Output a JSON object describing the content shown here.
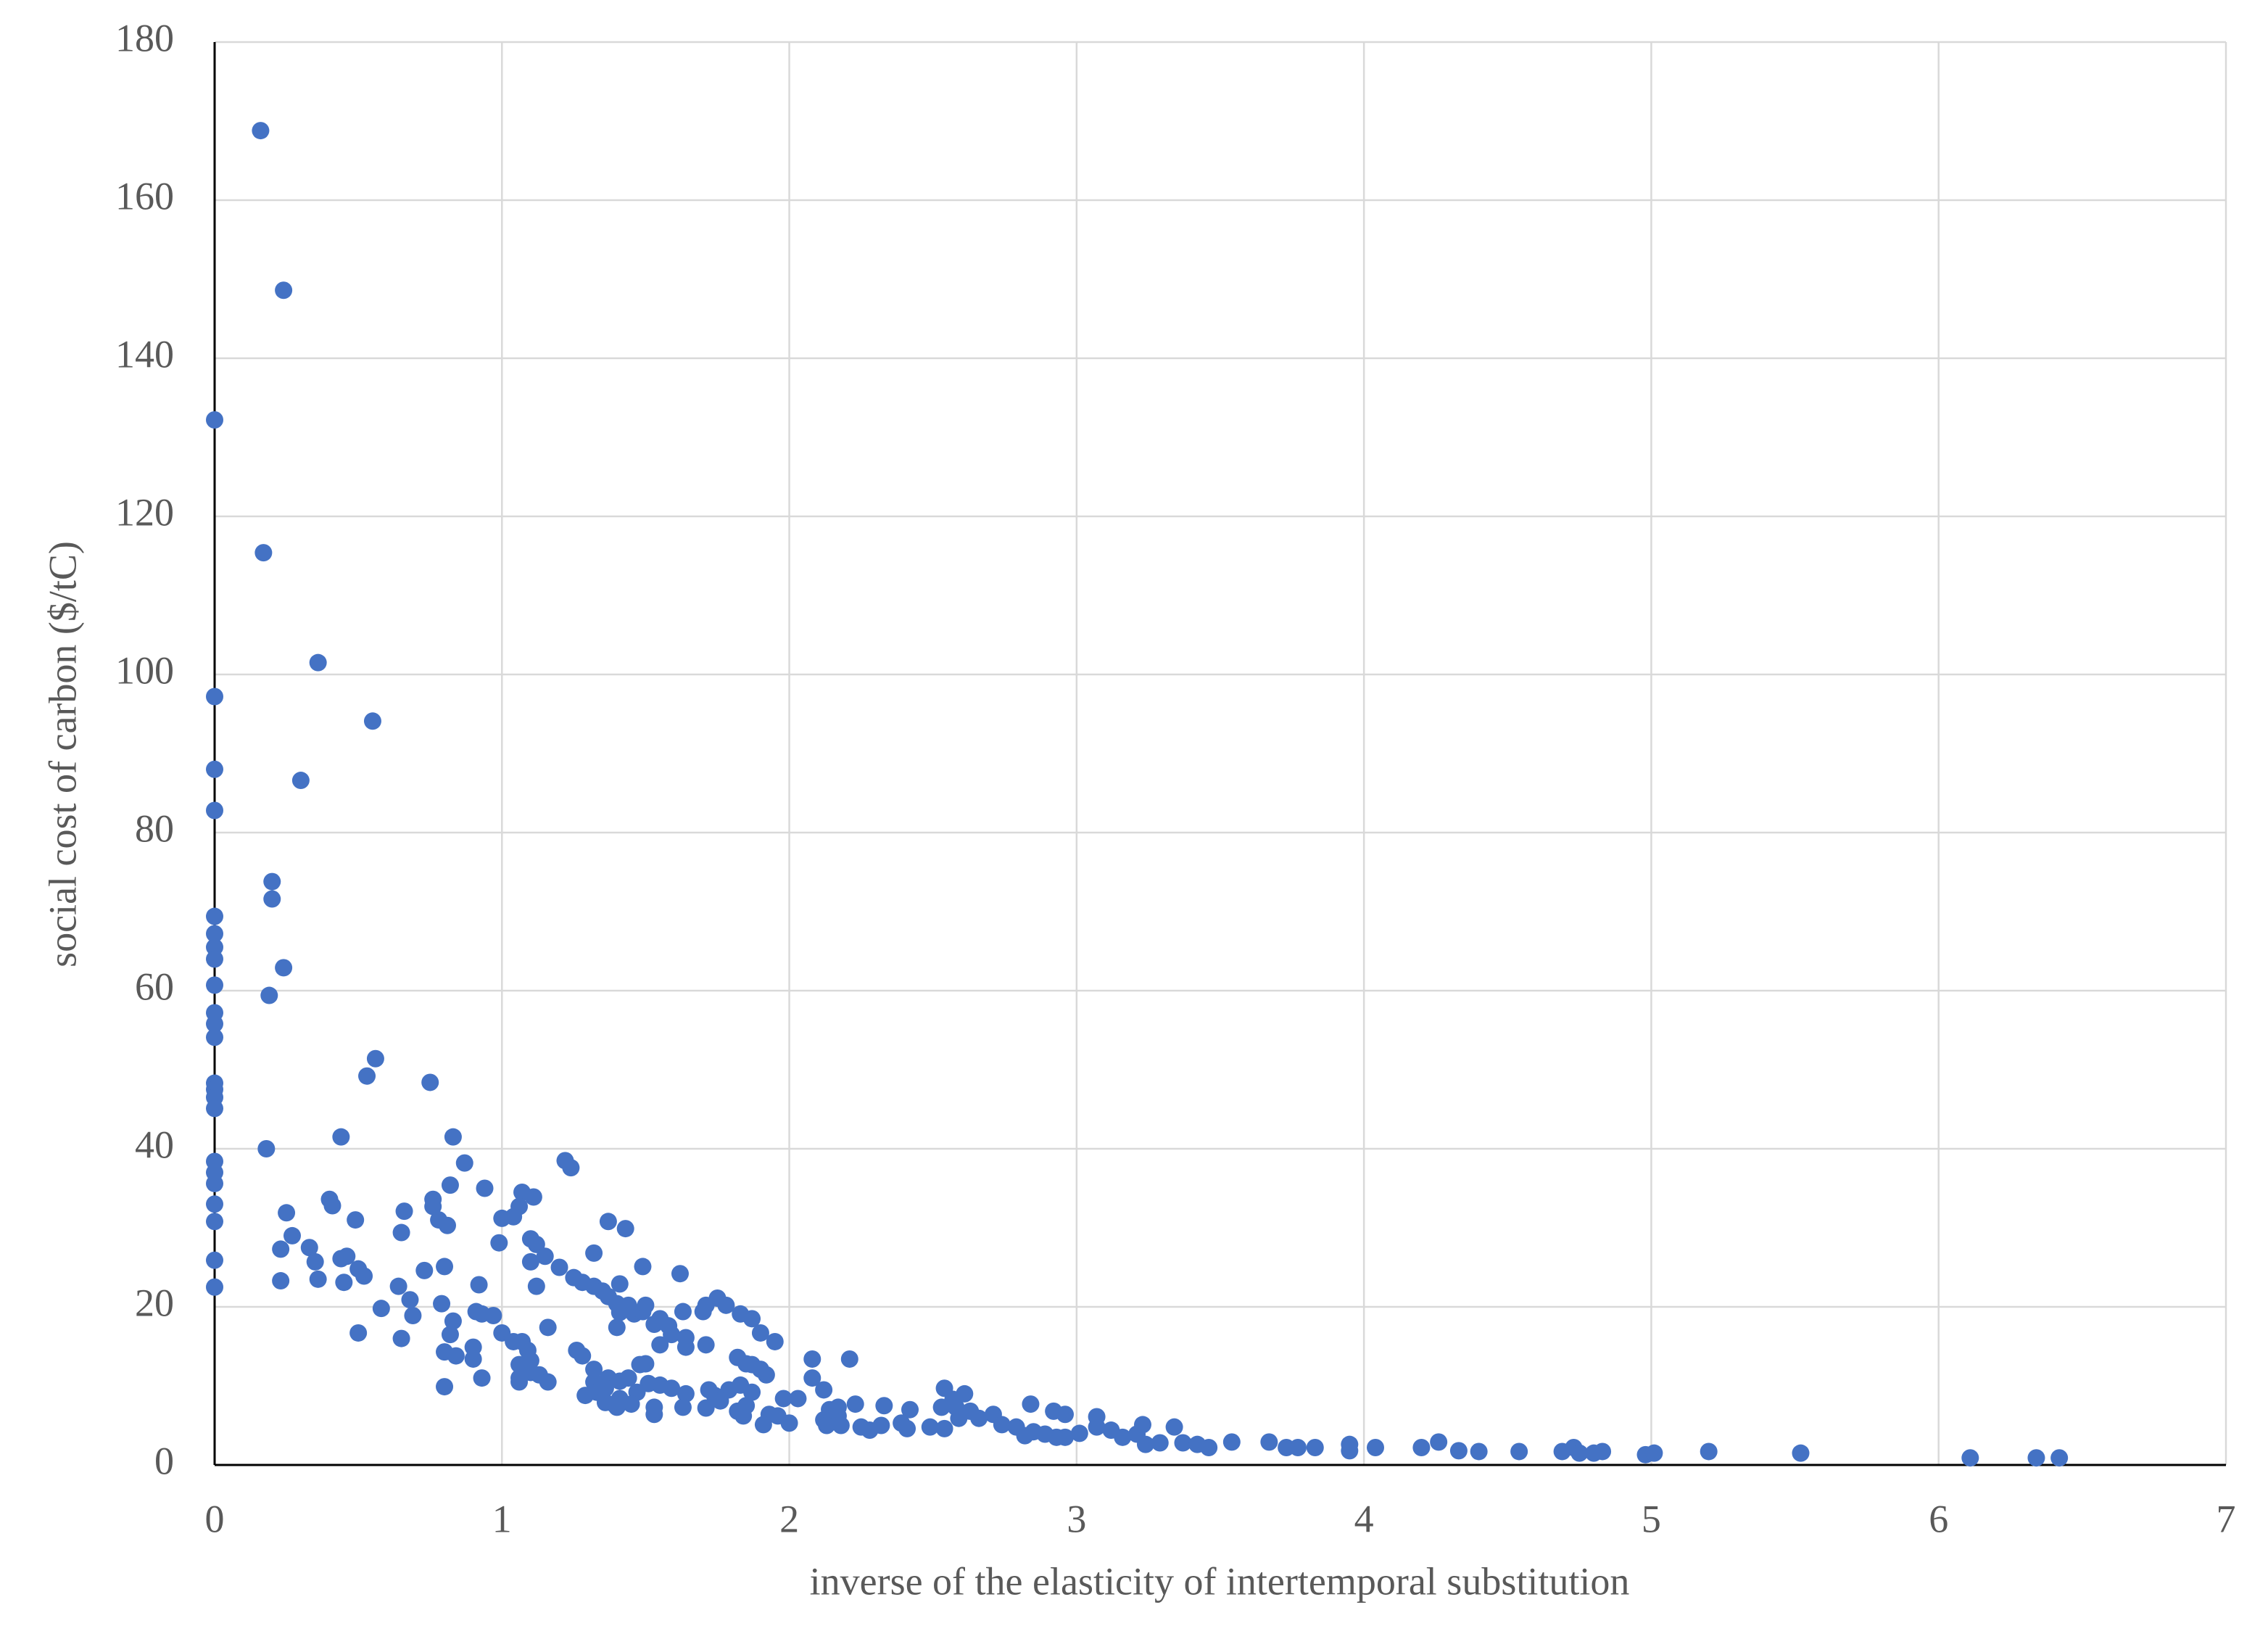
{
  "chart_data": {
    "type": "scatter",
    "xlabel": "inverse of the elasticity of intertemporal substitution",
    "ylabel": "social cost of carbon ($/tC)",
    "color": "#4472c4",
    "grid": true,
    "xlim": [
      0,
      7
    ],
    "xticks": [
      0,
      1,
      2,
      3,
      4,
      5,
      6,
      7
    ],
    "ylim": [
      0,
      180
    ],
    "yticks": [
      0,
      20,
      40,
      60,
      80,
      100,
      120,
      140,
      160,
      180
    ],
    "x": [
      0,
      0,
      0,
      0,
      0,
      0,
      0,
      0,
      0,
      0,
      0,
      0,
      0,
      0,
      0,
      0,
      0,
      0,
      0,
      0,
      0,
      0,
      0,
      0.16,
      0.24,
      0.17,
      0.36,
      0.55,
      0.3,
      0.2,
      0.2,
      0.24,
      0.19,
      0.18,
      0.56,
      0.53,
      0.75,
      0.44,
      0.83,
      0.87,
      1.22,
      1.24,
      0.82,
      0.94,
      0.4,
      0.41,
      0.25,
      0.66,
      0.76,
      0.76,
      0.49,
      0.78,
      0.81,
      1.37,
      1.43,
      1.07,
      1.11,
      1.06,
      1.04,
      1.0,
      0.99,
      1.1,
      1.12,
      1.15,
      1.1,
      1.2,
      0.65,
      0.27,
      0.33,
      0.23,
      0.46,
      0.44,
      0.35,
      0.73,
      0.8,
      0.5,
      0.52,
      0.23,
      0.36,
      0.45,
      1.32,
      1.49,
      1.62,
      1.25,
      1.28,
      1.32,
      1.35,
      1.41,
      0.92,
      1.12,
      0.64,
      0.68,
      1.37,
      1.4,
      1.41,
      1.44,
      1.46,
      1.49,
      1.5,
      1.75,
      1.71,
      1.78,
      1.7,
      1.83,
      1.87,
      1.63,
      1.55,
      1.58,
      1.53,
      1.4,
      1.9,
      1.95,
      1.59,
      1.64,
      1.64,
      1.71,
      1.55,
      0.58,
      0.79,
      0.69,
      0.83,
      0.91,
      0.97,
      0.93,
      0.82,
      1.0,
      0.5,
      0.65,
      1.16,
      1.04,
      1.07,
      0.9,
      0.8,
      0.84,
      1.09,
      1.1,
      0.9,
      1.06,
      1.26,
      1.28,
      1.06,
      1.1,
      1.13,
      0.93,
      1.06,
      1.16,
      0.8,
      1.32,
      1.48,
      1.5,
      1.82,
      1.85,
      1.87,
      1.9,
      1.92,
      2.08,
      2.21,
      2.08,
      2.12,
      1.37,
      1.41,
      1.44,
      1.32,
      1.36,
      1.51,
      1.55,
      1.59,
      1.64,
      1.72,
      1.74,
      1.79,
      1.83,
      1.87,
      1.98,
      2.03,
      1.29,
      1.33,
      1.41,
      1.47,
      1.39,
      1.45,
      1.36,
      1.4,
      1.53,
      1.63,
      1.71,
      1.76,
      1.82,
      1.85,
      1.84,
      1.53,
      1.93,
      1.91,
      1.96,
      2.0,
      2.14,
      2.17,
      2.23,
      2.33,
      2.42,
      2.12,
      2.17,
      2.13,
      2.18,
      2.25,
      2.28,
      2.32,
      2.39,
      2.41,
      2.49,
      2.54,
      2.54,
      2.61,
      2.57,
      2.53,
      2.58,
      2.63,
      2.71,
      2.59,
      2.66,
      2.74,
      2.84,
      2.92,
      2.96,
      3.07,
      2.79,
      2.82,
      2.85,
      2.89,
      2.93,
      2.96,
      3.01,
      3.07,
      3.12,
      3.16,
      3.21,
      3.23,
      3.24,
      3.34,
      3.29,
      3.37,
      3.42,
      3.46,
      3.54,
      3.67,
      3.73,
      3.77,
      3.83,
      3.95,
      3.95,
      4.04,
      4.2,
      4.26,
      4.33,
      4.4,
      4.54,
      4.69,
      4.73,
      4.75,
      4.8,
      4.83,
      4.98,
      5.01,
      5.2,
      5.52,
      6.11,
      6.34,
      6.42
    ],
    "values": [
      132.2,
      97.2,
      88,
      82.8,
      69.4,
      67.2,
      65.5,
      64,
      60.7,
      57.2,
      55.8,
      54.1,
      48.3,
      47.5,
      46.5,
      45.1,
      38.4,
      37,
      35.6,
      33,
      30.8,
      25.9,
      22.5,
      168.8,
      148.6,
      115.4,
      101.5,
      94.1,
      86.6,
      73.8,
      71.6,
      62.9,
      59.4,
      40,
      51.4,
      49.2,
      48.4,
      41.5,
      41.5,
      38.2,
      38.5,
      37.6,
      35.4,
      35,
      33.6,
      32.8,
      31.9,
      32.1,
      33.6,
      32.7,
      31,
      31,
      30.3,
      30.8,
      29.9,
      34.5,
      33.9,
      32.7,
      31.4,
      31.2,
      28.1,
      28.6,
      27.9,
      26.4,
      25.7,
      25,
      29.4,
      29,
      27.5,
      27.3,
      26.4,
      26.1,
      25.7,
      24.6,
      25.1,
      24.8,
      23.9,
      23.3,
      23.5,
      23.1,
      26.8,
      25.1,
      24.2,
      23.7,
      23.1,
      22.6,
      22,
      22.9,
      22.8,
      22.6,
      22.6,
      20.9,
      21.3,
      20.4,
      19.3,
      20.2,
      19.1,
      19.4,
      20.2,
      21.1,
      20.2,
      20.2,
      19.4,
      19.1,
      18.5,
      19.4,
      18.5,
      17.6,
      17.8,
      17.4,
      16.7,
      15.6,
      16.5,
      16.1,
      14.9,
      15.2,
      15.2,
      19.8,
      20.4,
      18.9,
      18.2,
      19.4,
      18.9,
      19.1,
      16.5,
      16.7,
      16.7,
      16,
      17.4,
      15.6,
      15.6,
      14.9,
      14.3,
      13.8,
      14.5,
      13.2,
      13.4,
      12.7,
      14.5,
      13.8,
      11,
      11.7,
      11.4,
      11,
      10.5,
      10.5,
      9.9,
      12.1,
      12.7,
      12.8,
      13.6,
      12.8,
      12.7,
      12.1,
      11.4,
      13.4,
      13.4,
      11,
      9.5,
      11,
      10.6,
      11,
      10.5,
      9.7,
      10.3,
      10.1,
      9.7,
      9,
      9.5,
      8.8,
      9.5,
      10.1,
      9.2,
      8.4,
      8.4,
      8.8,
      9.2,
      8.4,
      9.2,
      7.7,
      7.7,
      7.9,
      7.3,
      7.3,
      7.3,
      7.2,
      8.1,
      6.8,
      7.5,
      6.2,
      6.4,
      6.4,
      5.1,
      6.2,
      5.3,
      7,
      7.3,
      7.7,
      7.5,
      7,
      5.7,
      6.2,
      5,
      5,
      4.8,
      4.4,
      5,
      5.3,
      4.6,
      4.8,
      4.6,
      9.7,
      9,
      8.3,
      7.3,
      7.3,
      6.8,
      6.4,
      5.9,
      5.9,
      5.1,
      7.7,
      6.8,
      6.4,
      6.1,
      4.8,
      3.7,
      4.2,
      3.9,
      3.5,
      3.5,
      4,
      4.8,
      4.4,
      3.5,
      3.9,
      5.1,
      2.6,
      4.8,
      2.8,
      2.8,
      2.6,
      2.2,
      2.9,
      2.9,
      2.2,
      2.2,
      2.2,
      2.6,
      1.8,
      2.2,
      2.2,
      2.9,
      1.8,
      1.7,
      1.7,
      1.7,
      2.2,
      1.5,
      1.5,
      1.7,
      1.3,
      1.5,
      1.7,
      1.5,
      0.9,
      0.9,
      0.9
    ]
  }
}
